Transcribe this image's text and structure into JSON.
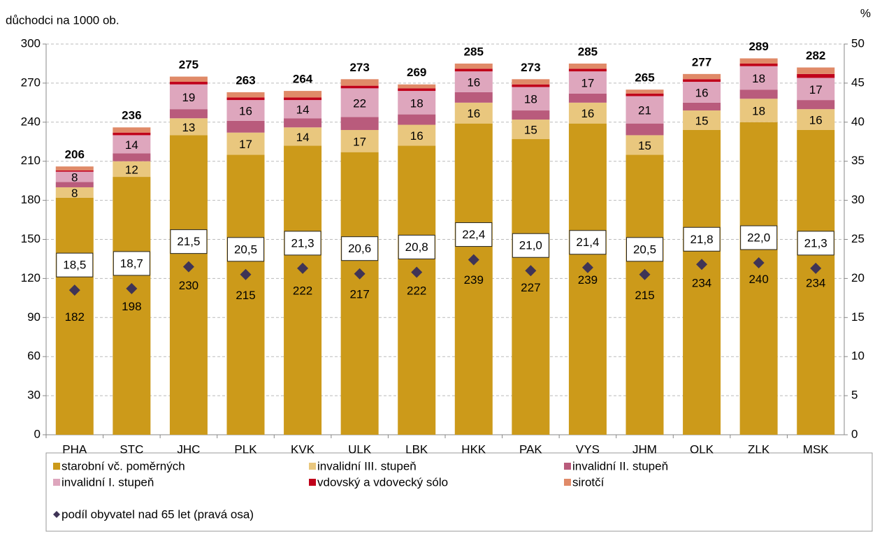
{
  "chart_data": {
    "type": "bar",
    "stacked": true,
    "ylabel": "důchodci na 1000 ob.",
    "y2label": "%",
    "categories": [
      "PHA",
      "STC",
      "JHC",
      "PLK",
      "KVK",
      "ULK",
      "LBK",
      "HKK",
      "PAK",
      "VYS",
      "JHM",
      "OLK",
      "ZLK",
      "MSK"
    ],
    "ylim": [
      0,
      300
    ],
    "yticks": [
      0,
      30,
      60,
      90,
      120,
      150,
      180,
      210,
      240,
      270,
      300
    ],
    "y2lim": [
      0,
      50
    ],
    "y2ticks": [
      0,
      5,
      10,
      15,
      20,
      25,
      30,
      35,
      40,
      45,
      50
    ],
    "grid": true,
    "series": [
      {
        "name": "starobní vč. poměrných",
        "color": "#CC9A1A",
        "labels": true,
        "values": [
          182,
          198,
          230,
          215,
          222,
          217,
          222,
          239,
          227,
          239,
          215,
          234,
          240,
          234
        ]
      },
      {
        "name": "invalidní III. stupeň",
        "color": "#E9C77E",
        "labels": true,
        "values": [
          8,
          12,
          13,
          17,
          14,
          17,
          16,
          16,
          15,
          16,
          15,
          15,
          18,
          16
        ]
      },
      {
        "name": "invalidní II. stupeň",
        "color": "#B95B7C",
        "labels": false,
        "values": [
          4,
          6,
          7,
          9,
          7,
          10,
          8,
          8,
          7,
          7,
          9,
          6,
          7,
          7
        ]
      },
      {
        "name": "invalidní I. stupeň",
        "color": "#DEA6BD",
        "labels": true,
        "values": [
          8,
          14,
          19,
          16,
          14,
          22,
          18,
          16,
          18,
          17,
          21,
          16,
          18,
          17
        ]
      },
      {
        "name": "vdovský a vdovecký sólo",
        "color": "#C0001A",
        "labels": false,
        "values": [
          1,
          2,
          2,
          2,
          2,
          2,
          2,
          2,
          2,
          2,
          2,
          2,
          2,
          3
        ]
      },
      {
        "name": "sirotčí",
        "color": "#E08A68",
        "labels": false,
        "values": [
          3,
          4,
          4,
          4,
          5,
          5,
          3,
          4,
          4,
          4,
          3,
          4,
          4,
          5
        ]
      }
    ],
    "totals": [
      206,
      236,
      275,
      263,
      264,
      273,
      269,
      285,
      273,
      285,
      265,
      277,
      289,
      282
    ],
    "line_series": {
      "name": "podíl obyvatel nad 65 let (pravá osa)",
      "color": "#3F3456",
      "axis": "y2",
      "marker": "diamond",
      "values": [
        18.5,
        18.7,
        21.5,
        20.5,
        21.3,
        20.6,
        20.8,
        22.4,
        21.0,
        21.4,
        20.5,
        21.8,
        22.0,
        21.3
      ],
      "value_labels": [
        "18,5",
        "18,7",
        "21,5",
        "20,5",
        "21,3",
        "20,6",
        "20,8",
        "22,4",
        "21,0",
        "21,4",
        "20,5",
        "21,8",
        "22,0",
        "21,3"
      ]
    }
  }
}
